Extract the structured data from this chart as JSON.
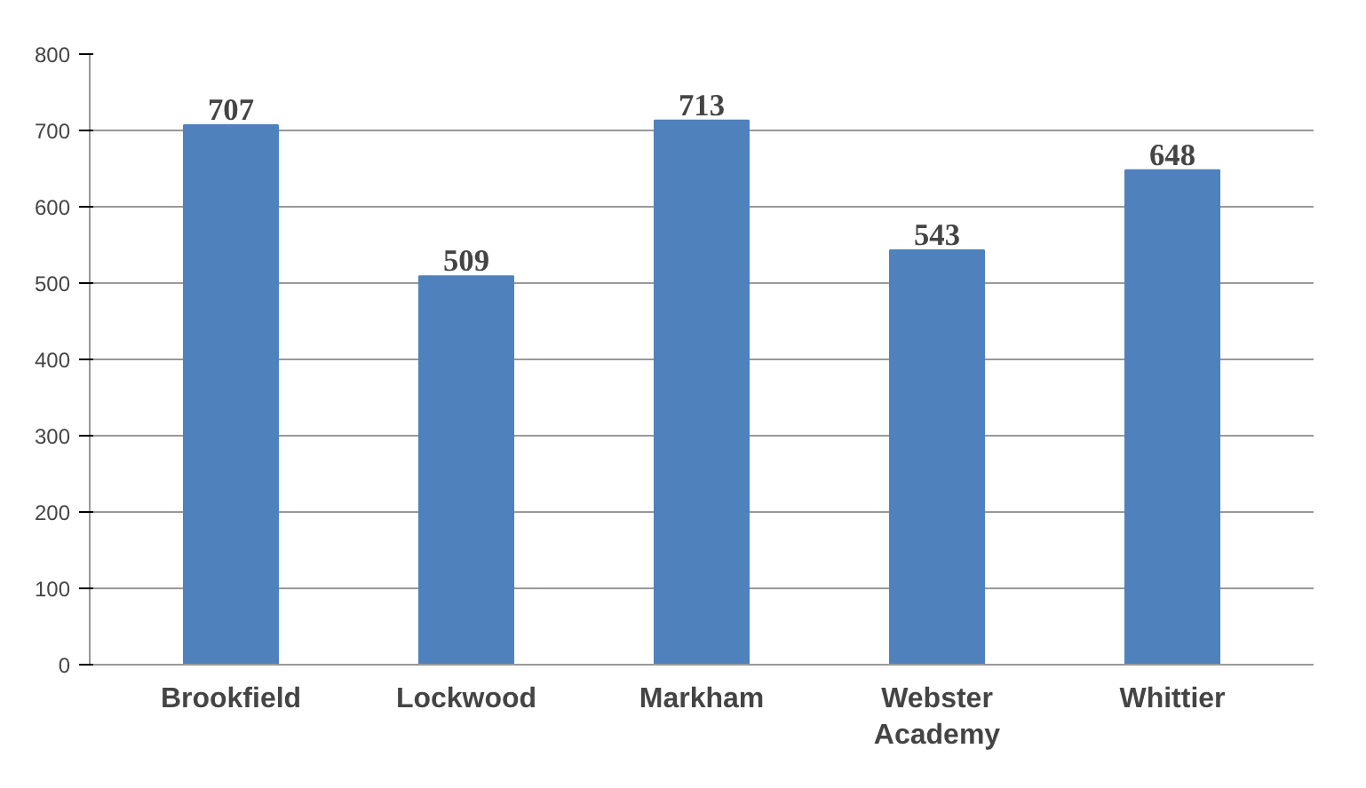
{
  "chart_data": {
    "type": "bar",
    "categories": [
      "Brookfield",
      "Lockwood",
      "Markham",
      "Webster\nAcademy",
      "Whittier"
    ],
    "values": [
      707,
      509,
      713,
      543,
      648
    ],
    "color": "#4f81bd",
    "ylim": [
      0,
      800
    ],
    "yticks": [
      0,
      100,
      200,
      300,
      400,
      500,
      600,
      700,
      800
    ],
    "grid": "y",
    "data_labels": true
  }
}
